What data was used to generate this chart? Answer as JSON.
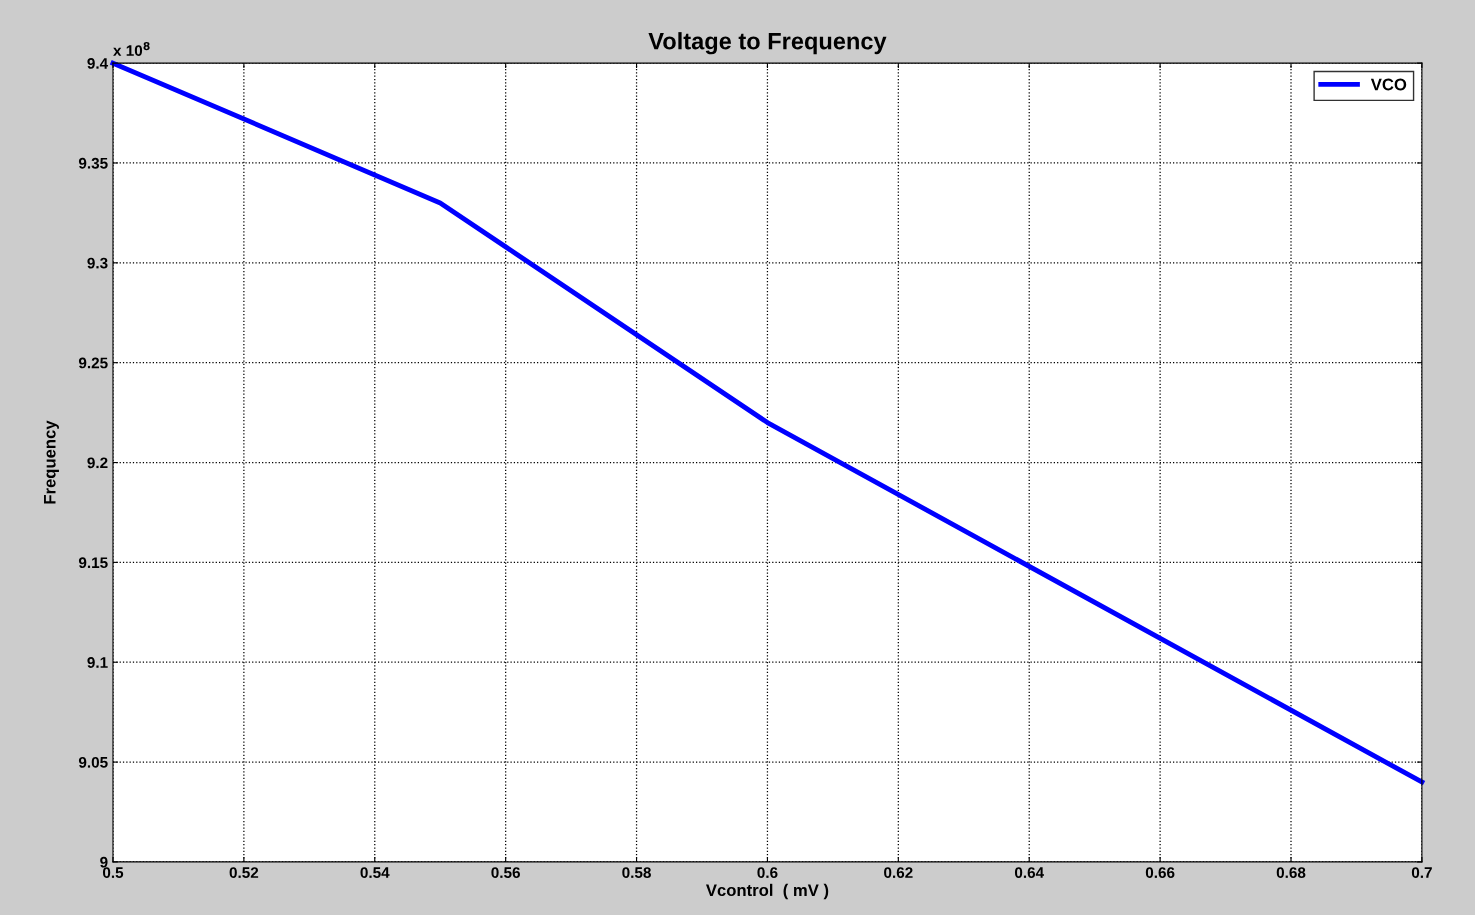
{
  "chart_data": {
    "type": "line",
    "title": "Voltage to Frequency",
    "xlabel": "Vcontrol  ( mV )",
    "ylabel": "Frequency",
    "annotations": [
      "x 10$^{8}$"
    ],
    "x": [
      0.5,
      0.55,
      0.6,
      0.7
    ],
    "series": [
      {
        "name": "VCO",
        "color": "#0000ff",
        "values": [
          9.4,
          9.33,
          9.22,
          9.04
        ]
      }
    ],
    "xlim": [
      0.5,
      0.7
    ],
    "xticks": [
      0.5,
      0.52,
      0.54,
      0.56,
      0.58,
      0.6,
      0.62,
      0.64,
      0.66,
      0.68,
      0.7
    ],
    "ylim": [
      9,
      9.4
    ],
    "yticks": [
      9,
      9.05,
      9.1,
      9.15,
      9.2,
      9.25,
      9.3,
      9.35,
      9.4
    ],
    "grid": true,
    "legend": "top right",
    "marker": "none",
    "line_style": "solid"
  }
}
